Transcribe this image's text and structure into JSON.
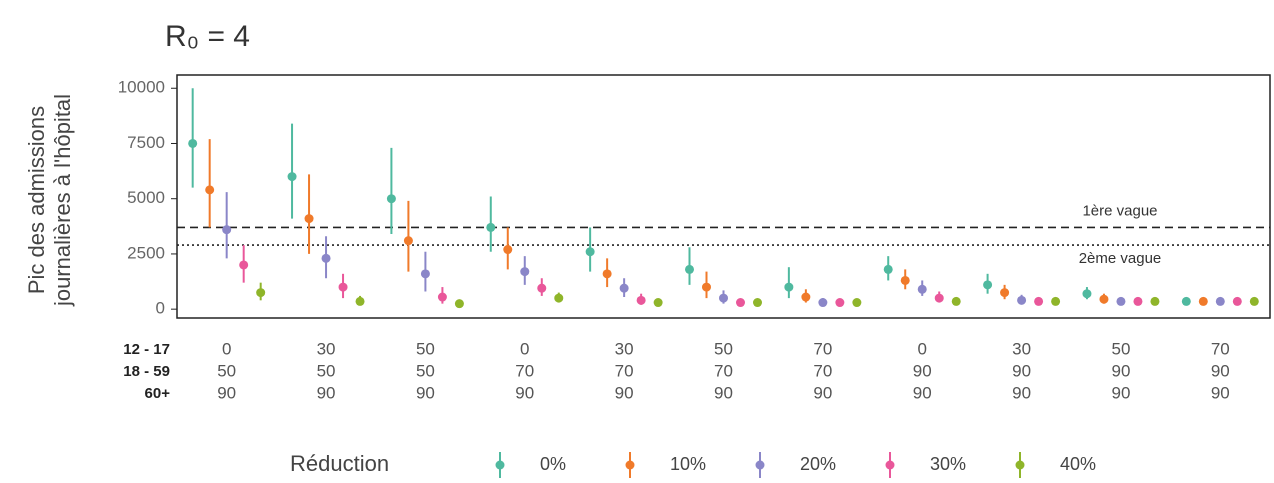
{
  "chart_data": {
    "type": "pointrange",
    "title": "R₀ = 4",
    "ylabel": [
      "Pic des admissions",
      "journalières à l'hôpital"
    ],
    "ylim": [
      -400,
      10600
    ],
    "yticks": [
      0,
      2500,
      5000,
      7500,
      10000
    ],
    "category_rows": [
      "12 - 17",
      "18 - 59",
      "60+"
    ],
    "categories": [
      [
        "0",
        "50",
        "90"
      ],
      [
        "30",
        "50",
        "90"
      ],
      [
        "50",
        "50",
        "90"
      ],
      [
        "0",
        "70",
        "90"
      ],
      [
        "30",
        "70",
        "90"
      ],
      [
        "50",
        "70",
        "90"
      ],
      [
        "70",
        "70",
        "90"
      ],
      [
        "0",
        "90",
        "90"
      ],
      [
        "30",
        "90",
        "90"
      ],
      [
        "50",
        "90",
        "90"
      ],
      [
        "70",
        "90",
        "90"
      ]
    ],
    "legend_title": "Réduction",
    "hlines": [
      {
        "value": 3700,
        "label": "1ère vague",
        "style": "dashed"
      },
      {
        "value": 2900,
        "label": "2ème vague",
        "style": "dotted"
      }
    ],
    "series": [
      {
        "name": "0%",
        "color": "#4fb99f",
        "values": [
          7500,
          6000,
          5000,
          3700,
          2600,
          1800,
          1000,
          1800,
          1100,
          700,
          350
        ],
        "lower": [
          5500,
          4100,
          3400,
          2600,
          1700,
          1100,
          500,
          1300,
          700,
          450,
          200
        ],
        "upper": [
          10000,
          8400,
          7300,
          5100,
          3700,
          2800,
          1900,
          2400,
          1600,
          1000,
          500
        ]
      },
      {
        "name": "10%",
        "color": "#f07a2a",
        "values": [
          5400,
          4100,
          3100,
          2700,
          1600,
          1000,
          550,
          1300,
          750,
          450,
          350
        ],
        "lower": [
          3700,
          2500,
          1700,
          1800,
          1000,
          500,
          300,
          900,
          450,
          250,
          200
        ],
        "upper": [
          7700,
          6100,
          4900,
          3700,
          2300,
          1700,
          900,
          1800,
          1100,
          700,
          500
        ]
      },
      {
        "name": "20%",
        "color": "#8a86c8",
        "values": [
          3600,
          2300,
          1600,
          1700,
          950,
          500,
          300,
          900,
          400,
          350,
          350
        ],
        "lower": [
          2300,
          1400,
          800,
          1100,
          550,
          250,
          150,
          600,
          250,
          200,
          200
        ],
        "upper": [
          5300,
          3300,
          2600,
          2400,
          1400,
          850,
          500,
          1300,
          650,
          500,
          500
        ]
      },
      {
        "name": "30%",
        "color": "#e9579a",
        "values": [
          2000,
          1000,
          550,
          950,
          400,
          300,
          300,
          500,
          350,
          350,
          350
        ],
        "lower": [
          1200,
          500,
          250,
          600,
          200,
          150,
          150,
          300,
          200,
          200,
          200
        ],
        "upper": [
          2900,
          1600,
          1000,
          1400,
          700,
          450,
          450,
          800,
          500,
          500,
          500
        ]
      },
      {
        "name": "40%",
        "color": "#8fb52a",
        "values": [
          750,
          350,
          250,
          500,
          300,
          300,
          300,
          350,
          350,
          350,
          350
        ],
        "lower": [
          400,
          200,
          100,
          300,
          150,
          150,
          150,
          200,
          200,
          200,
          200
        ],
        "upper": [
          1200,
          600,
          400,
          750,
          450,
          400,
          450,
          500,
          500,
          500,
          500
        ]
      }
    ]
  }
}
